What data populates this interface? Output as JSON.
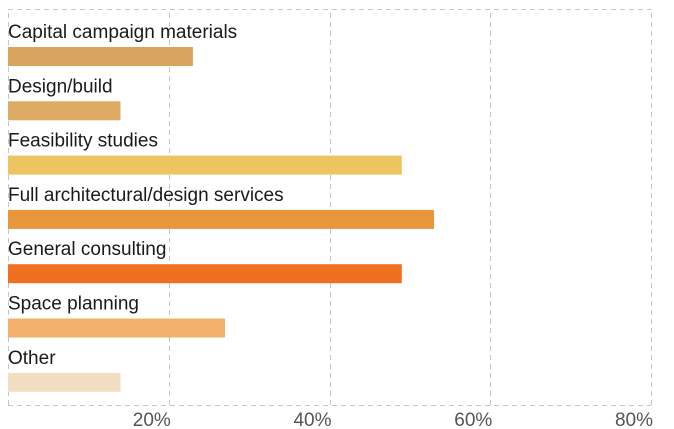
{
  "chart_data": {
    "type": "bar",
    "orientation": "horizontal",
    "title": "",
    "xlabel": "",
    "ylabel": "",
    "categories": [
      "Capital campaign materials",
      "Design/build",
      "Feasibility studies",
      "Full architectural/design services",
      "General consulting",
      "Space planning",
      "Other"
    ],
    "values": [
      23,
      14,
      49,
      53,
      49,
      27,
      14
    ],
    "bar_colors": [
      "#d9a55e",
      "#ddab63",
      "#edc560",
      "#e8973a",
      "#f07022",
      "#f2b06c",
      "#f2dfc2"
    ],
    "xlim": [
      0,
      80
    ],
    "ticks": [
      {
        "value": 20,
        "label": "20%"
      },
      {
        "value": 40,
        "label": "40%"
      },
      {
        "value": 60,
        "label": "60%"
      },
      {
        "value": 80,
        "label": "80%"
      }
    ],
    "grid": true,
    "legend": "none"
  }
}
